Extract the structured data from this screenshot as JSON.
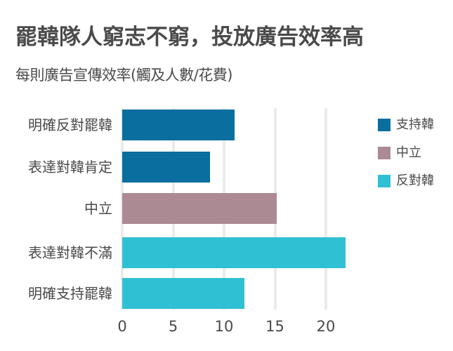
{
  "header": {
    "title": "罷韓隊人窮志不窮，投放廣告效率高",
    "subtitle": "每則廣告宣傳效率(觸及人數/花費)"
  },
  "colors": {
    "support_han": "#0a6e9f",
    "neutral": "#ac8a93",
    "oppose_han": "#2fc0d3",
    "grid": "#ebebeb",
    "text": "#4a4a4a"
  },
  "legend": [
    {
      "label": "支持韓",
      "color": "#0a6e9f"
    },
    {
      "label": "中立",
      "color": "#ac8a93"
    },
    {
      "label": "反對韓",
      "color": "#2fc0d3"
    }
  ],
  "axis": {
    "ticks": [
      "0",
      "5",
      "10",
      "15",
      "20"
    ]
  },
  "chart_data": {
    "type": "bar",
    "orientation": "horizontal",
    "title": "罷韓隊人窮志不窮，投放廣告效率高",
    "subtitle": "每則廣告宣傳效率(觸及人數/花費)",
    "xlabel": "",
    "ylabel": "",
    "categories": [
      "明確反對罷韓",
      "表達對韓肯定",
      "中立",
      "表達對韓不滿",
      "明確支持罷韓"
    ],
    "values": [
      11.0,
      8.6,
      15.2,
      21.9,
      12.0
    ],
    "groups": [
      "支持韓",
      "支持韓",
      "中立",
      "反對韓",
      "反對韓"
    ],
    "series_colors": {
      "支持韓": "#0a6e9f",
      "中立": "#ac8a93",
      "反對韓": "#2fc0d3"
    },
    "xlim": [
      0,
      22
    ],
    "xticks": [
      0,
      5,
      10,
      15,
      20
    ],
    "grid": true,
    "legend_position": "right",
    "legend": [
      "支持韓",
      "中立",
      "反對韓"
    ]
  }
}
